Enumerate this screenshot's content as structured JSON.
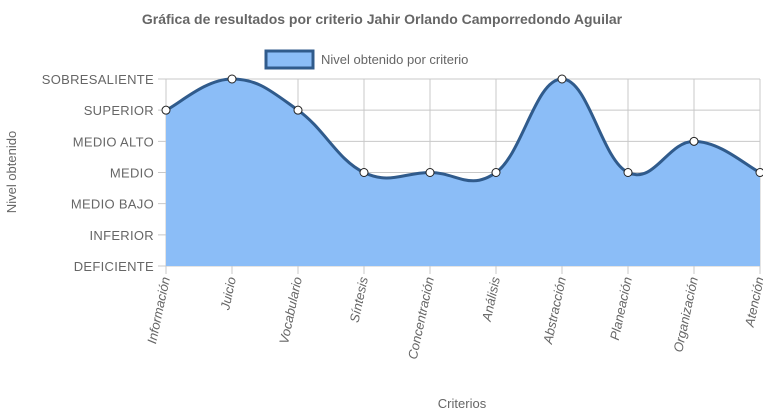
{
  "chart_data": {
    "type": "area",
    "title": "Gráfica de resultados por criterio Jahir Orlando Camporredondo Aguilar",
    "xlabel": "Criterios",
    "ylabel": "Nivel obtenido",
    "y_levels": [
      "DEFICIENTE",
      "INFERIOR",
      "MEDIO BAJO",
      "MEDIO",
      "MEDIO ALTO",
      "SUPERIOR",
      "SOBRESALIENTE"
    ],
    "categories": [
      "Información",
      "Juicio",
      "Vocabulario",
      "Síntesis",
      "Concentración",
      "Análisis",
      "Abstracción",
      "Planeación",
      "Organización",
      "Atención"
    ],
    "series": [
      {
        "name": "Nivel obtenido por criterio",
        "values": [
          "SUPERIOR",
          "SOBRESALIENTE",
          "SUPERIOR",
          "MEDIO",
          "MEDIO",
          "MEDIO",
          "SOBRESALIENTE",
          "MEDIO",
          "MEDIO ALTO",
          "MEDIO"
        ]
      }
    ],
    "legend": "top-center",
    "grid": true,
    "colors": {
      "fill": "#8bbdf7",
      "line": "#305b8c",
      "point_fill": "#ffffff",
      "grid": "#c8c8c8"
    }
  }
}
